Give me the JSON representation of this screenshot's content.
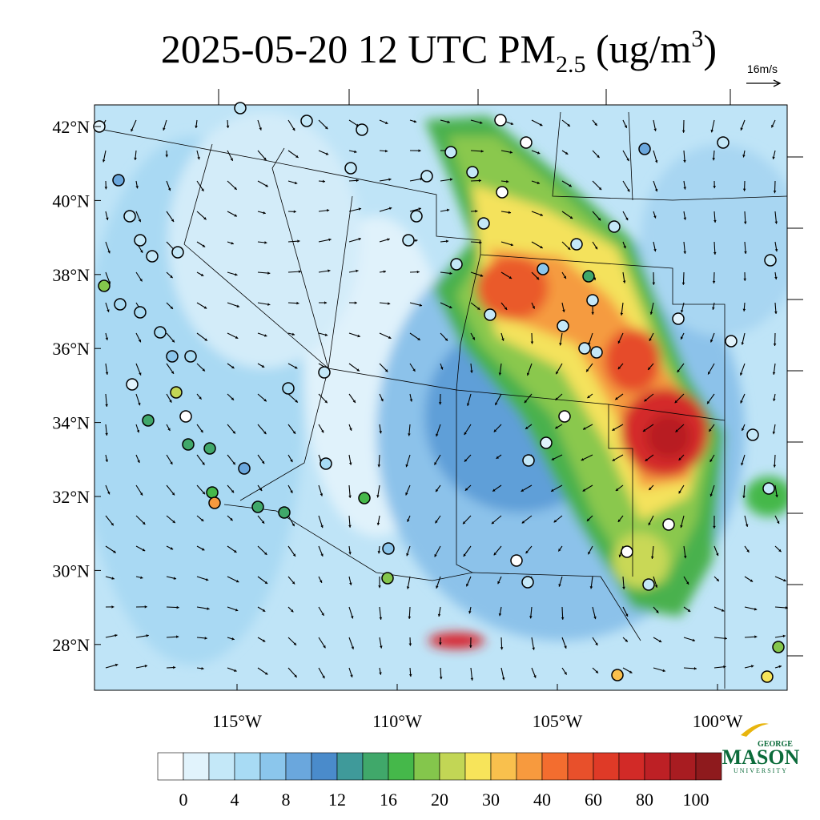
{
  "title": {
    "prefix": "2025-05-20 12 UTC PM",
    "sub": "2.5",
    "mid": " (ug/m",
    "sup": "3",
    "end": ")"
  },
  "wind_scale": "16m/s",
  "lat_labels": [
    "42°N",
    "40°N",
    "38°N",
    "36°N",
    "34°N",
    "32°N",
    "30°N",
    "28°N"
  ],
  "lon_labels": [
    "115°W",
    "110°W",
    "105°W",
    "100°W"
  ],
  "colorbar": {
    "labels": [
      "0",
      "4",
      "8",
      "12",
      "16",
      "20",
      "30",
      "40",
      "60",
      "80",
      "100"
    ],
    "colors": [
      "#ffffff",
      "#e1f3fc",
      "#c4e8f8",
      "#a8dbf4",
      "#8bc6ec",
      "#6aa7dd",
      "#4a8bcb",
      "#3f9a9a",
      "#40a86a",
      "#45b84a",
      "#84c64c",
      "#c2d655",
      "#f7e45a",
      "#f9c04d",
      "#f79a3e",
      "#f36d2f",
      "#e8502b",
      "#df3a27",
      "#d22a27",
      "#bd2025",
      "#a81c21",
      "#8e1a1d"
    ]
  },
  "logo": {
    "top": "GEORGE",
    "main": "MASON",
    "bottom": "UNIVERSITY"
  }
}
